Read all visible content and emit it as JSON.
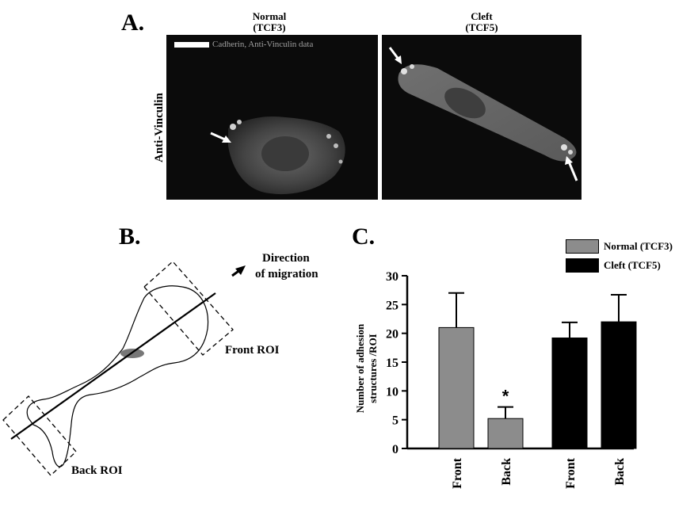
{
  "panel_a": {
    "label": "A.",
    "left_title_line1": "Normal",
    "left_title_line2": "(TCF3)",
    "right_title_line1": "Cleft",
    "right_title_line2": "(TCF5)",
    "row_label": "Anti-Vinculin",
    "caption": "Cadherin, Anti-Vinculin data"
  },
  "panel_b": {
    "label": "B.",
    "direction_line1": "Direction",
    "direction_line2": "of migration",
    "front_roi": "Front ROI",
    "back_roi": "Back ROI"
  },
  "chart_data": {
    "type": "bar",
    "panel_label": "C.",
    "ylabel_line1": "Number of adhesion",
    "ylabel_line2": "structures /ROI",
    "ylim": [
      0,
      30
    ],
    "yticks": [
      "0",
      "5",
      "10",
      "15",
      "20",
      "25",
      "30"
    ],
    "categories": [
      "Front",
      "Back",
      "Front",
      "Back"
    ],
    "bars": [
      {
        "category": "Front",
        "group": "Normal (TCF3)",
        "value": 21,
        "error": 6,
        "color": "#8c8c8c"
      },
      {
        "category": "Back",
        "group": "Normal (TCF3)",
        "value": 5.2,
        "error": 2,
        "color": "#8c8c8c",
        "annotation": "*"
      },
      {
        "category": "Front",
        "group": "Cleft (TCF5)",
        "value": 19.2,
        "error": 2.7,
        "color": "#000000"
      },
      {
        "category": "Back",
        "group": "Cleft (TCF5)",
        "value": 22,
        "error": 4.7,
        "color": "#000000"
      }
    ],
    "legend": [
      {
        "name": "Normal (TCF3)",
        "color": "#8c8c8c"
      },
      {
        "name": "Cleft (TCF5)",
        "color": "#000000"
      }
    ],
    "legend_position": "top-right",
    "grid": false
  }
}
